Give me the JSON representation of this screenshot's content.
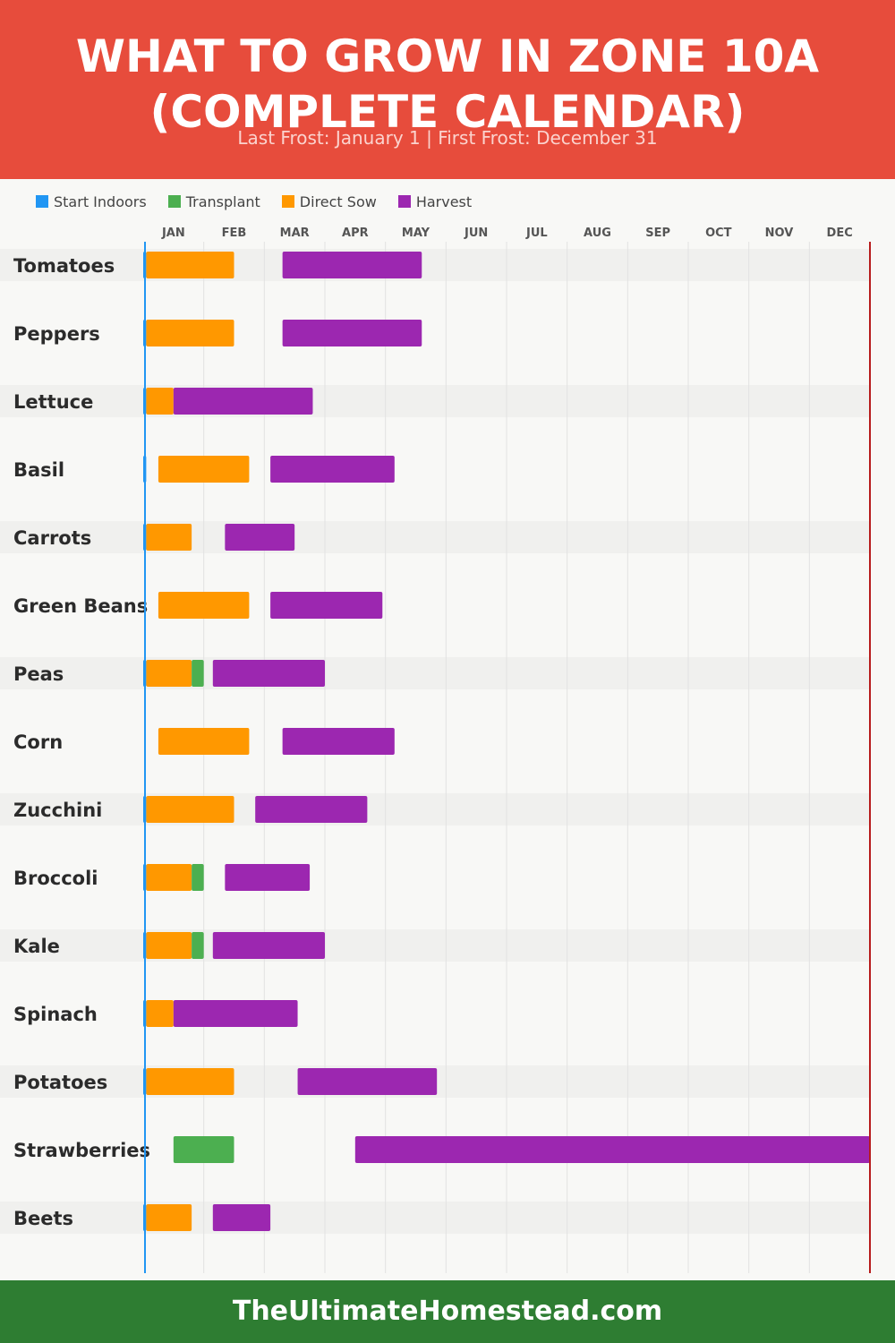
{
  "header": {
    "title_line1": "WHAT TO GROW IN ZONE 10A",
    "title_line2": "(COMPLETE CALENDAR)",
    "subtitle": "Last Frost: January 1 | First Frost: December 31",
    "background": "#e74c3c"
  },
  "legend": [
    {
      "label": "Start Indoors",
      "color": "#2196f3"
    },
    {
      "label": "Transplant",
      "color": "#4caf50"
    },
    {
      "label": "Direct Sow",
      "color": "#ff9800"
    },
    {
      "label": "Harvest",
      "color": "#9c27b0"
    }
  ],
  "chart_data": {
    "type": "gantt",
    "months": [
      "JAN",
      "FEB",
      "MAR",
      "APR",
      "MAY",
      "JUN",
      "JUL",
      "AUG",
      "SEP",
      "OCT",
      "NOV",
      "DEC"
    ],
    "x_unit": "month (1.0 = start of Jan, 13.0 = end of Dec)",
    "markers": {
      "last_frost": "January 1",
      "first_frost": "December 31"
    },
    "crops": [
      {
        "name": "Tomatoes",
        "phases": [
          {
            "phase": "Start Indoors",
            "start": 1.0,
            "end": 1.05
          },
          {
            "phase": "Direct Sow",
            "start": 1.05,
            "end": 2.5
          },
          {
            "phase": "Harvest",
            "start": 3.3,
            "end": 5.6
          }
        ]
      },
      {
        "name": "Peppers",
        "phases": [
          {
            "phase": "Start Indoors",
            "start": 1.0,
            "end": 1.05
          },
          {
            "phase": "Direct Sow",
            "start": 1.05,
            "end": 2.5
          },
          {
            "phase": "Harvest",
            "start": 3.3,
            "end": 5.6
          }
        ]
      },
      {
        "name": "Lettuce",
        "phases": [
          {
            "phase": "Start Indoors",
            "start": 1.0,
            "end": 1.05
          },
          {
            "phase": "Direct Sow",
            "start": 1.05,
            "end": 1.5
          },
          {
            "phase": "Harvest",
            "start": 1.5,
            "end": 3.8
          }
        ]
      },
      {
        "name": "Basil",
        "phases": [
          {
            "phase": "Start Indoors",
            "start": 1.0,
            "end": 1.05
          },
          {
            "phase": "Direct Sow",
            "start": 1.25,
            "end": 2.75
          },
          {
            "phase": "Harvest",
            "start": 3.1,
            "end": 5.15
          }
        ]
      },
      {
        "name": "Carrots",
        "phases": [
          {
            "phase": "Start Indoors",
            "start": 1.0,
            "end": 1.05
          },
          {
            "phase": "Direct Sow",
            "start": 1.05,
            "end": 1.8
          },
          {
            "phase": "Harvest",
            "start": 2.35,
            "end": 3.5
          }
        ]
      },
      {
        "name": "Green Beans",
        "phases": [
          {
            "phase": "Direct Sow",
            "start": 1.25,
            "end": 2.75
          },
          {
            "phase": "Harvest",
            "start": 3.1,
            "end": 4.95
          }
        ]
      },
      {
        "name": "Peas",
        "phases": [
          {
            "phase": "Start Indoors",
            "start": 1.0,
            "end": 1.05
          },
          {
            "phase": "Direct Sow",
            "start": 1.05,
            "end": 1.8
          },
          {
            "phase": "Transplant",
            "start": 1.8,
            "end": 2.0
          },
          {
            "phase": "Harvest",
            "start": 2.15,
            "end": 4.0
          }
        ]
      },
      {
        "name": "Corn",
        "phases": [
          {
            "phase": "Direct Sow",
            "start": 1.25,
            "end": 2.75
          },
          {
            "phase": "Harvest",
            "start": 3.3,
            "end": 5.15
          }
        ]
      },
      {
        "name": "Zucchini",
        "phases": [
          {
            "phase": "Start Indoors",
            "start": 1.0,
            "end": 1.05
          },
          {
            "phase": "Direct Sow",
            "start": 1.05,
            "end": 2.5
          },
          {
            "phase": "Harvest",
            "start": 2.85,
            "end": 4.7
          }
        ]
      },
      {
        "name": "Broccoli",
        "phases": [
          {
            "phase": "Start Indoors",
            "start": 1.0,
            "end": 1.05
          },
          {
            "phase": "Direct Sow",
            "start": 1.05,
            "end": 1.8
          },
          {
            "phase": "Transplant",
            "start": 1.8,
            "end": 2.0
          },
          {
            "phase": "Harvest",
            "start": 2.35,
            "end": 3.75
          }
        ]
      },
      {
        "name": "Kale",
        "phases": [
          {
            "phase": "Start Indoors",
            "start": 1.0,
            "end": 1.05
          },
          {
            "phase": "Direct Sow",
            "start": 1.05,
            "end": 1.8
          },
          {
            "phase": "Transplant",
            "start": 1.8,
            "end": 2.0
          },
          {
            "phase": "Harvest",
            "start": 2.15,
            "end": 4.0
          }
        ]
      },
      {
        "name": "Spinach",
        "phases": [
          {
            "phase": "Start Indoors",
            "start": 1.0,
            "end": 1.05
          },
          {
            "phase": "Direct Sow",
            "start": 1.05,
            "end": 1.5
          },
          {
            "phase": "Harvest",
            "start": 1.5,
            "end": 3.55
          }
        ]
      },
      {
        "name": "Potatoes",
        "phases": [
          {
            "phase": "Start Indoors",
            "start": 1.0,
            "end": 1.05
          },
          {
            "phase": "Direct Sow",
            "start": 1.05,
            "end": 2.5
          },
          {
            "phase": "Harvest",
            "start": 3.55,
            "end": 5.85
          }
        ]
      },
      {
        "name": "Strawberries",
        "phases": [
          {
            "phase": "Transplant",
            "start": 1.5,
            "end": 2.5
          },
          {
            "phase": "Harvest",
            "start": 4.5,
            "end": 13.0
          }
        ]
      },
      {
        "name": "Beets",
        "phases": [
          {
            "phase": "Start Indoors",
            "start": 1.0,
            "end": 1.05
          },
          {
            "phase": "Direct Sow",
            "start": 1.05,
            "end": 1.8
          },
          {
            "phase": "Harvest",
            "start": 2.15,
            "end": 3.1
          }
        ]
      }
    ]
  },
  "colors": {
    "start_indoors": "#2196f3",
    "transplant": "#4caf50",
    "direct_sow": "#ff9800",
    "harvest": "#9c27b0",
    "last_frost_line": "#2196f3",
    "first_frost_line": "#b71c1c",
    "row_stripe": "#f0f0ee"
  },
  "footer": {
    "text": "TheUltimateHomestead.com",
    "background": "#2e7d32"
  }
}
